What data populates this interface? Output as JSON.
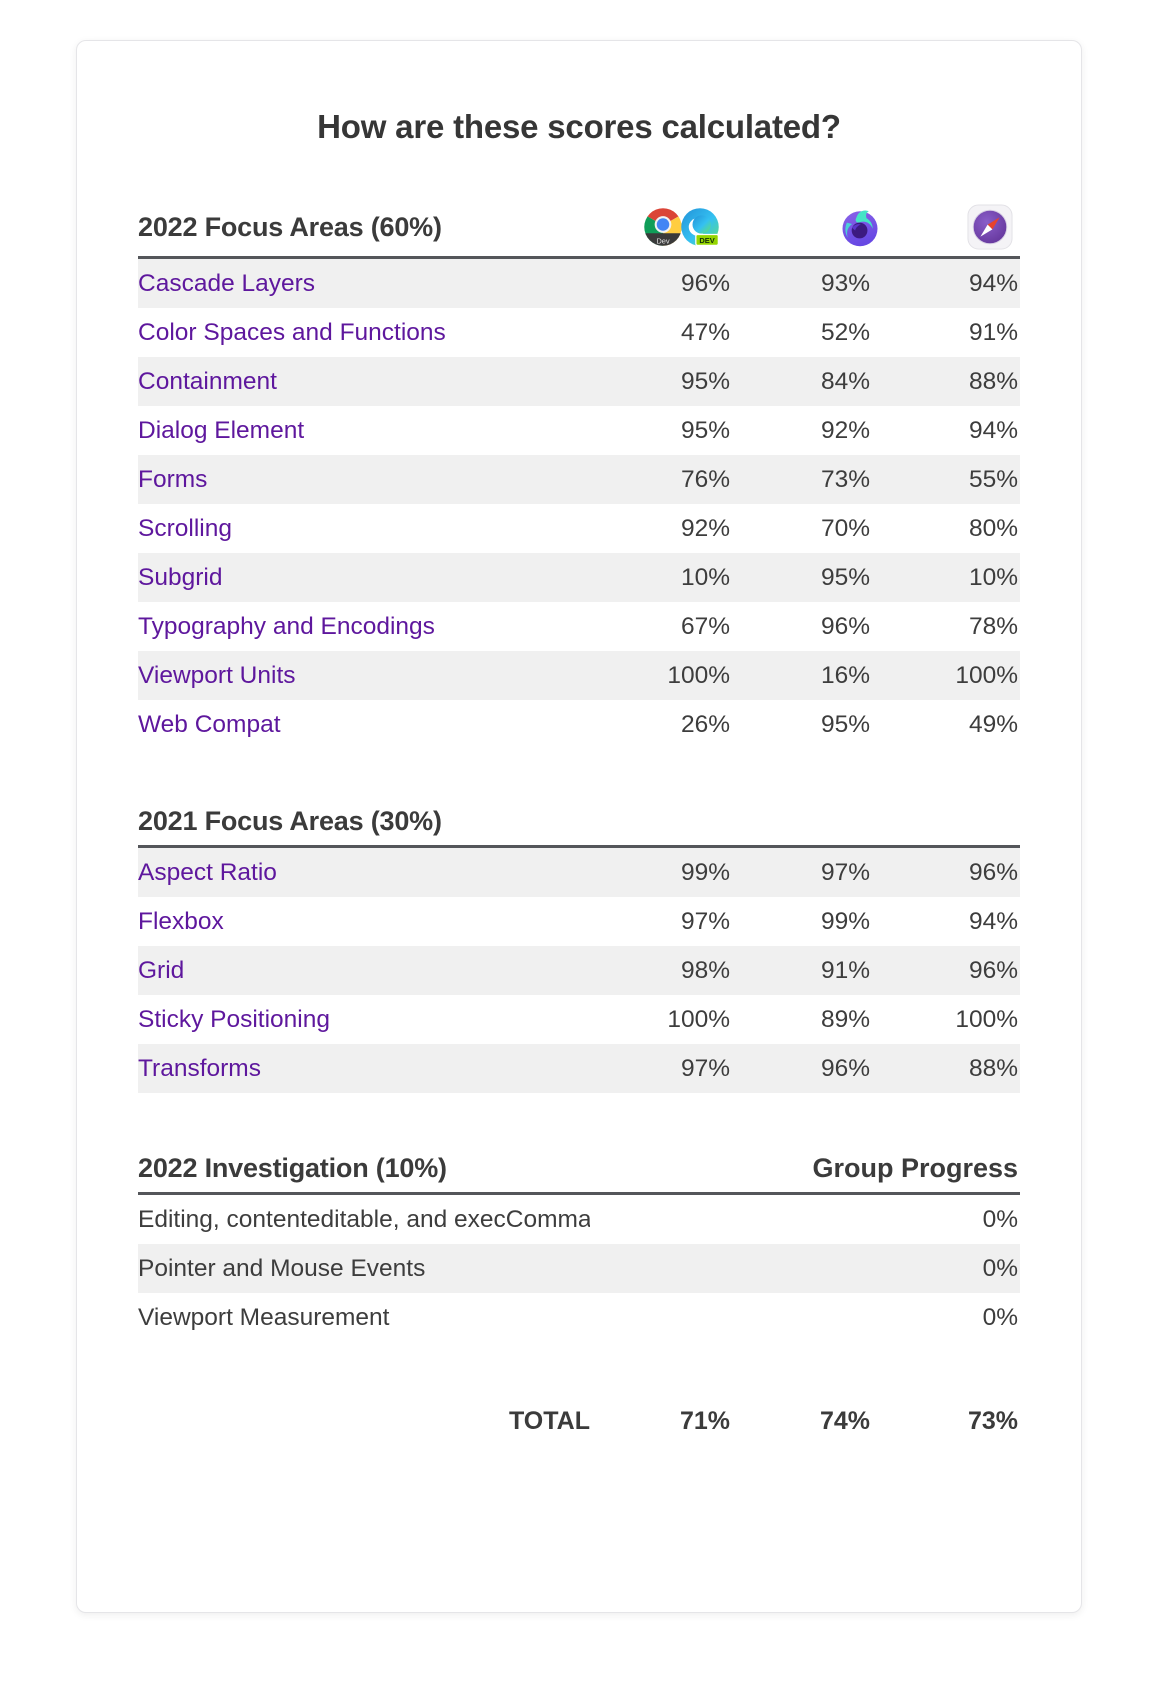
{
  "page": {
    "title": "How are these scores calculated?"
  },
  "colors": {
    "link_purple": "#5e179d",
    "row_stripe": "#f0f0f0",
    "header_rule": "#54565a",
    "text": "#3b3b3b"
  },
  "browsers": [
    {
      "id": "chrome-dev",
      "label": "Chrome Dev",
      "badge": "Dev"
    },
    {
      "id": "edge-dev",
      "label": "Edge Dev",
      "badge": "DEV"
    },
    {
      "id": "firefox-nightly",
      "label": "Firefox Nightly"
    },
    {
      "id": "safari-technology-preview",
      "label": "Safari Technology Preview"
    }
  ],
  "sections": [
    {
      "heading": "2022 Focus Areas (60%)",
      "link_labels": true,
      "stripe": "odd",
      "rows": [
        {
          "label": "Cascade Layers",
          "values": [
            "96%",
            "93%",
            "94%"
          ]
        },
        {
          "label": "Color Spaces and Functions",
          "values": [
            "47%",
            "52%",
            "91%"
          ]
        },
        {
          "label": "Containment",
          "values": [
            "95%",
            "84%",
            "88%"
          ]
        },
        {
          "label": "Dialog Element",
          "values": [
            "95%",
            "92%",
            "94%"
          ]
        },
        {
          "label": "Forms",
          "values": [
            "76%",
            "73%",
            "55%"
          ]
        },
        {
          "label": "Scrolling",
          "values": [
            "92%",
            "70%",
            "80%"
          ]
        },
        {
          "label": "Subgrid",
          "values": [
            "10%",
            "95%",
            "10%"
          ]
        },
        {
          "label": "Typography and Encodings",
          "values": [
            "67%",
            "96%",
            "78%"
          ]
        },
        {
          "label": "Viewport Units",
          "values": [
            "100%",
            "16%",
            "100%"
          ]
        },
        {
          "label": "Web Compat",
          "values": [
            "26%",
            "95%",
            "49%"
          ]
        }
      ]
    },
    {
      "heading": "2021 Focus Areas (30%)",
      "link_labels": true,
      "stripe": "odd",
      "rows": [
        {
          "label": "Aspect Ratio",
          "values": [
            "99%",
            "97%",
            "96%"
          ]
        },
        {
          "label": "Flexbox",
          "values": [
            "97%",
            "99%",
            "94%"
          ]
        },
        {
          "label": "Grid",
          "values": [
            "98%",
            "91%",
            "96%"
          ]
        },
        {
          "label": "Sticky Positioning",
          "values": [
            "100%",
            "89%",
            "100%"
          ]
        },
        {
          "label": "Transforms",
          "values": [
            "97%",
            "96%",
            "88%"
          ]
        }
      ]
    },
    {
      "heading": "2022 Investigation (10%)",
      "col_header": "Group Progress",
      "link_labels": false,
      "stripe": "even",
      "rows": [
        {
          "label": "Editing, contenteditable, and execCommand",
          "values": [
            "0%"
          ]
        },
        {
          "label": "Pointer and Mouse Events",
          "values": [
            "0%"
          ]
        },
        {
          "label": "Viewport Measurement",
          "values": [
            "0%"
          ]
        }
      ]
    }
  ],
  "total": {
    "label": "TOTAL",
    "values": [
      "71%",
      "74%",
      "73%"
    ]
  }
}
